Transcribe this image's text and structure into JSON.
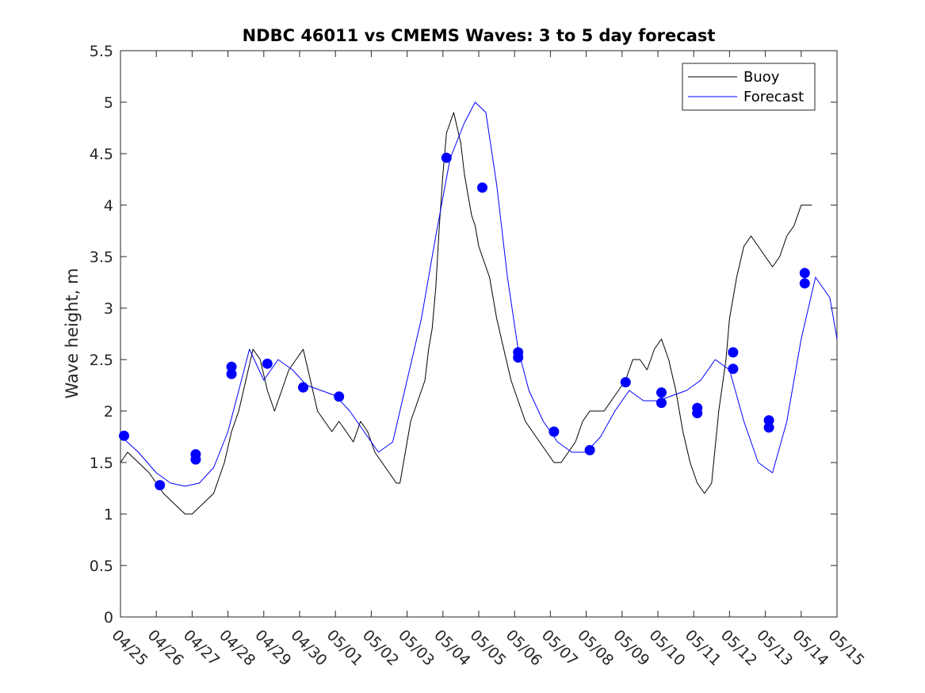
{
  "chart_data": {
    "type": "line",
    "title": "NDBC 46011 vs CMEMS Waves: 3 to 5 day forecast",
    "xlabel": "",
    "ylabel": "Wave height, m",
    "xlim": [
      "04/25",
      "05/15"
    ],
    "ylim": [
      0,
      5.5
    ],
    "yticks": [
      0,
      0.5,
      1,
      1.5,
      2,
      2.5,
      3,
      3.5,
      4,
      4.5,
      5,
      5.5
    ],
    "ytick_labels": [
      "0",
      "0.5",
      "1",
      "1.5",
      "2",
      "2.5",
      "3",
      "3.5",
      "4",
      "4.5",
      "5",
      "5.5"
    ],
    "xtick_labels": [
      "04/25",
      "04/26",
      "04/27",
      "04/28",
      "04/29",
      "04/30",
      "05/01",
      "05/02",
      "05/03",
      "05/04",
      "05/05",
      "05/06",
      "05/07",
      "05/08",
      "05/09",
      "05/10",
      "05/11",
      "05/12",
      "05/13",
      "05/14",
      "05/15"
    ],
    "grid": false,
    "legend_position": "top-right",
    "colors": {
      "buoy": "#000000",
      "forecast": "#0000ff"
    },
    "series": [
      {
        "name": "Buoy",
        "x_days": [
          0,
          0.2,
          0.5,
          0.8,
          1.0,
          1.2,
          1.5,
          1.8,
          2.0,
          2.3,
          2.6,
          2.9,
          3.1,
          3.3,
          3.5,
          3.7,
          3.9,
          4.1,
          4.3,
          4.5,
          4.7,
          4.9,
          5.1,
          5.3,
          5.5,
          5.7,
          5.9,
          6.1,
          6.3,
          6.5,
          6.7,
          6.9,
          7.1,
          7.3,
          7.5,
          7.7,
          7.8,
          7.9,
          8.1,
          8.3,
          8.5,
          8.6,
          8.7,
          8.8,
          8.9,
          9.0,
          9.1,
          9.3,
          9.5,
          9.6,
          9.7,
          9.8,
          9.9,
          10.0,
          10.1,
          10.3,
          10.5,
          10.7,
          10.9,
          11.1,
          11.3,
          11.5,
          11.7,
          11.9,
          12.1,
          12.3,
          12.5,
          12.7,
          12.9,
          13.1,
          13.3,
          13.5,
          13.7,
          13.9,
          14.1,
          14.3,
          14.5,
          14.7,
          14.9,
          15.1,
          15.3,
          15.5,
          15.7,
          15.9,
          16.1,
          16.3,
          16.5,
          16.7,
          16.9,
          17.0,
          17.2,
          17.4,
          17.6,
          17.8,
          18.0,
          18.2,
          18.4,
          18.6,
          18.8,
          18.9,
          19.0,
          19.1,
          19.2,
          19.3
        ],
        "values": [
          1.5,
          1.6,
          1.5,
          1.4,
          1.3,
          1.2,
          1.1,
          1.0,
          1.0,
          1.1,
          1.2,
          1.5,
          1.8,
          2.0,
          2.3,
          2.6,
          2.5,
          2.2,
          2.0,
          2.2,
          2.4,
          2.5,
          2.6,
          2.3,
          2.0,
          1.9,
          1.8,
          1.9,
          1.8,
          1.7,
          1.9,
          1.8,
          1.6,
          1.5,
          1.4,
          1.3,
          1.3,
          1.5,
          1.9,
          2.1,
          2.3,
          2.6,
          2.8,
          3.2,
          3.8,
          4.3,
          4.7,
          4.9,
          4.6,
          4.3,
          4.1,
          3.9,
          3.8,
          3.6,
          3.5,
          3.3,
          2.9,
          2.6,
          2.3,
          2.1,
          1.9,
          1.8,
          1.7,
          1.6,
          1.5,
          1.5,
          1.6,
          1.7,
          1.9,
          2.0,
          2.0,
          2.0,
          2.1,
          2.2,
          2.3,
          2.5,
          2.5,
          2.4,
          2.6,
          2.7,
          2.5,
          2.2,
          1.8,
          1.5,
          1.3,
          1.2,
          1.3,
          2.0,
          2.5,
          2.9,
          3.3,
          3.6,
          3.7,
          3.6,
          3.5,
          3.4,
          3.5,
          3.7,
          3.8,
          3.9,
          4.0,
          4.0,
          4.0,
          4.0
        ]
      },
      {
        "name": "Forecast",
        "x_days": [
          0,
          0.5,
          1.0,
          1.4,
          1.8,
          2.2,
          2.6,
          3.0,
          3.3,
          3.6,
          4.0,
          4.4,
          4.8,
          5.2,
          5.6,
          6.0,
          6.4,
          6.8,
          7.2,
          7.6,
          8.0,
          8.4,
          8.8,
          9.2,
          9.6,
          9.9,
          10.2,
          10.5,
          10.8,
          11.1,
          11.4,
          11.8,
          12.2,
          12.6,
          13.0,
          13.4,
          13.8,
          14.2,
          14.6,
          15.0,
          15.4,
          15.8,
          16.2,
          16.6,
          17.0,
          17.4,
          17.8,
          18.2,
          18.6,
          19.0,
          19.4,
          19.8,
          20.0
        ],
        "values": [
          1.76,
          1.6,
          1.4,
          1.3,
          1.27,
          1.3,
          1.45,
          1.8,
          2.2,
          2.6,
          2.3,
          2.5,
          2.4,
          2.25,
          2.2,
          2.15,
          2.0,
          1.8,
          1.6,
          1.7,
          2.3,
          2.9,
          3.7,
          4.45,
          4.8,
          5.0,
          4.9,
          4.2,
          3.3,
          2.6,
          2.2,
          1.9,
          1.7,
          1.6,
          1.6,
          1.75,
          2.0,
          2.2,
          2.1,
          2.1,
          2.15,
          2.2,
          2.3,
          2.5,
          2.4,
          1.9,
          1.5,
          1.4,
          1.9,
          2.7,
          3.3,
          3.1,
          2.7
        ]
      }
    ],
    "forecast_init_markers": {
      "x_days": [
        0.1,
        1.1,
        2.1,
        2.1,
        3.1,
        3.1,
        4.1,
        5.1,
        6.1,
        9.1,
        10.1,
        11.1,
        11.1,
        12.1,
        13.1,
        14.1,
        15.1,
        15.1,
        16.1,
        16.1,
        17.1,
        17.1,
        18.1,
        18.1,
        19.1,
        19.1
      ],
      "values": [
        1.76,
        1.28,
        1.58,
        1.53,
        2.43,
        2.36,
        2.46,
        2.23,
        2.14,
        4.46,
        4.17,
        2.57,
        2.52,
        1.8,
        1.62,
        2.28,
        2.18,
        2.08,
        2.03,
        1.98,
        2.57,
        2.41,
        1.91,
        1.84,
        3.34,
        3.24
      ]
    }
  }
}
